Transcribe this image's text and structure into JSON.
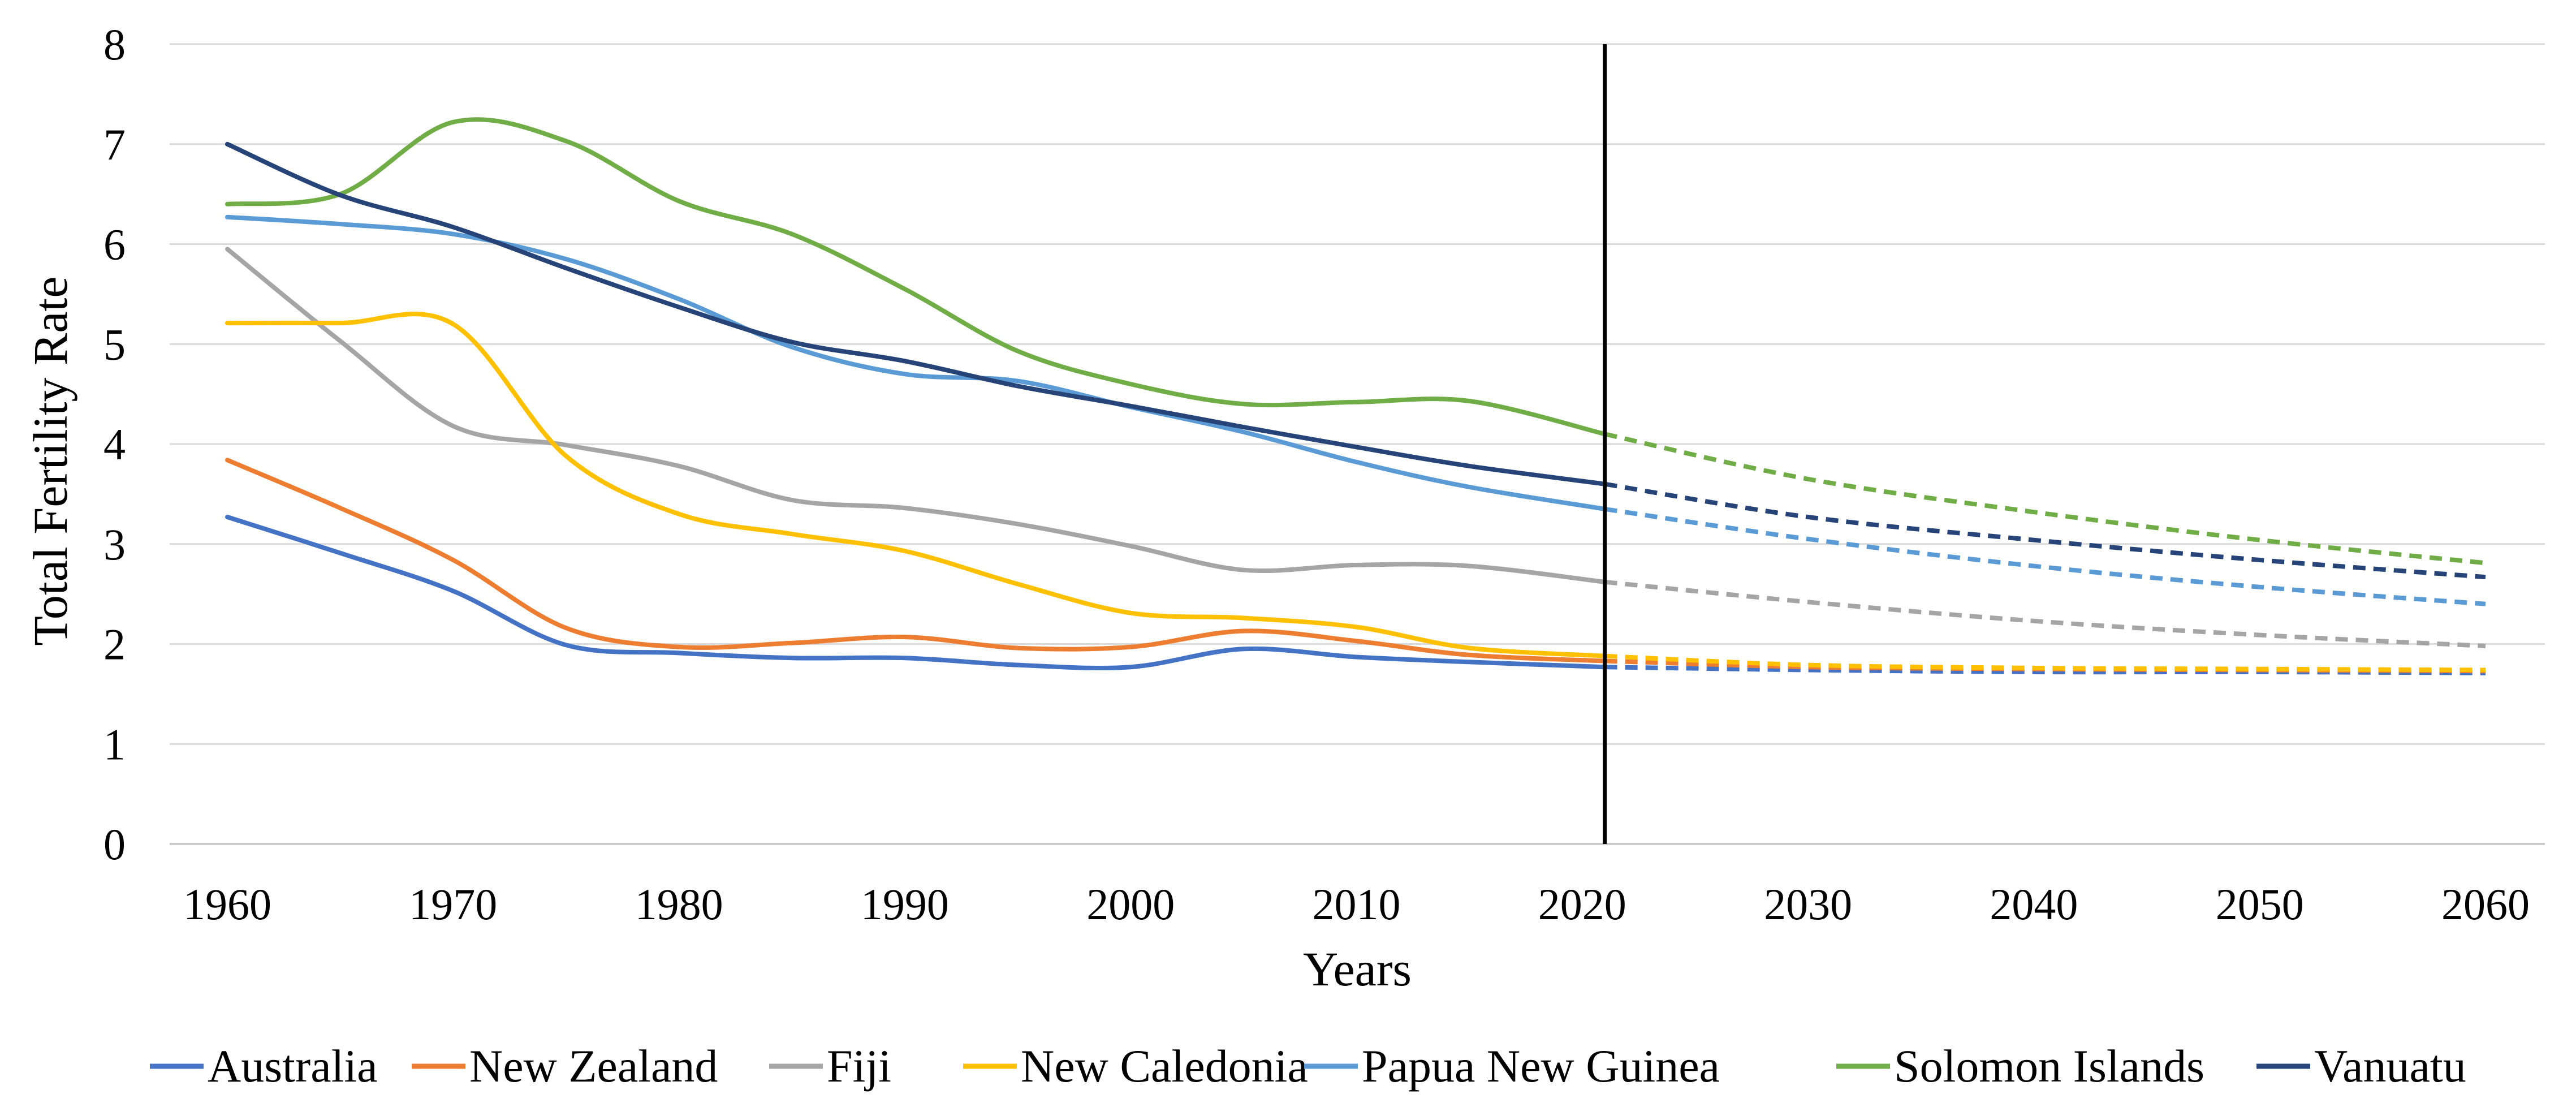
{
  "chart_data": {
    "type": "line",
    "title": "",
    "xlabel": "Years",
    "ylabel": "Total Fertility Rate",
    "xlim": [
      1960,
      2060
    ],
    "ylim": [
      0,
      8
    ],
    "x_ticks": [
      "1960",
      "1970",
      "1980",
      "1990",
      "2000",
      "2010",
      "2020",
      "2030",
      "2040",
      "2050",
      "2060"
    ],
    "y_ticks": [
      "0",
      "1",
      "2",
      "3",
      "4",
      "5",
      "6",
      "7",
      "8"
    ],
    "grid": "horizontal",
    "legend_position": "bottom",
    "vertical_marker_x": 2021,
    "projection_start": 2021,
    "projection_style": "dashed",
    "series": [
      {
        "name": "Australia",
        "color": "#4472C4",
        "x": [
          1960,
          1965,
          1970,
          1975,
          1980,
          1985,
          1990,
          1995,
          2000,
          2005,
          2010,
          2015,
          2021
        ],
        "values": [
          3.27,
          2.91,
          2.53,
          1.99,
          1.91,
          1.86,
          1.86,
          1.79,
          1.77,
          1.95,
          1.87,
          1.82,
          1.77
        ],
        "projection": {
          "x": [
            2021,
            2030,
            2040,
            2050,
            2060
          ],
          "values": [
            1.77,
            1.74,
            1.72,
            1.72,
            1.71
          ]
        }
      },
      {
        "name": "New Zealand",
        "color": "#ED7D31",
        "x": [
          1960,
          1965,
          1970,
          1975,
          1980,
          1985,
          1990,
          1995,
          2000,
          2005,
          2010,
          2015,
          2021
        ],
        "values": [
          3.84,
          3.36,
          2.84,
          2.16,
          1.97,
          2.01,
          2.07,
          1.96,
          1.97,
          2.13,
          2.03,
          1.89,
          1.83
        ],
        "projection": {
          "x": [
            2021,
            2030,
            2040,
            2050,
            2060
          ],
          "values": [
            1.83,
            1.77,
            1.75,
            1.74,
            1.73
          ]
        }
      },
      {
        "name": "Fiji",
        "color": "#A5A5A5",
        "x": [
          1960,
          1965,
          1970,
          1975,
          1980,
          1985,
          1990,
          1995,
          2000,
          2005,
          2010,
          2015,
          2021
        ],
        "values": [
          5.95,
          5.03,
          4.18,
          3.99,
          3.78,
          3.44,
          3.36,
          3.2,
          2.98,
          2.74,
          2.79,
          2.78,
          2.62
        ],
        "projection": {
          "x": [
            2021,
            2030,
            2040,
            2050,
            2060
          ],
          "values": [
            2.62,
            2.42,
            2.23,
            2.09,
            1.98
          ]
        }
      },
      {
        "name": "New Caledonia",
        "color": "#FFC000",
        "x": [
          1960,
          1965,
          1970,
          1975,
          1980,
          1985,
          1990,
          1995,
          2000,
          2005,
          2010,
          2015,
          2021
        ],
        "values": [
          5.21,
          5.21,
          5.2,
          3.88,
          3.3,
          3.1,
          2.93,
          2.6,
          2.31,
          2.26,
          2.17,
          1.96,
          1.88
        ],
        "projection": {
          "x": [
            2021,
            2030,
            2040,
            2050,
            2060
          ],
          "values": [
            1.88,
            1.79,
            1.76,
            1.75,
            1.74
          ]
        }
      },
      {
        "name": "Papua New Guinea",
        "color": "#5B9BD5",
        "x": [
          1960,
          1965,
          1970,
          1975,
          1980,
          1985,
          1990,
          1995,
          2000,
          2005,
          2010,
          2015,
          2021
        ],
        "values": [
          6.27,
          6.2,
          6.1,
          5.85,
          5.45,
          4.97,
          4.7,
          4.63,
          4.37,
          4.12,
          3.82,
          3.57,
          3.35
        ],
        "projection": {
          "x": [
            2021,
            2030,
            2040,
            2050,
            2060
          ],
          "values": [
            3.35,
            3.05,
            2.78,
            2.57,
            2.4
          ]
        }
      },
      {
        "name": "Solomon Islands",
        "color": "#70AD47",
        "x": [
          1960,
          1965,
          1970,
          1975,
          1980,
          1985,
          1990,
          1995,
          2000,
          2005,
          2010,
          2015,
          2021
        ],
        "values": [
          6.4,
          6.5,
          7.22,
          7.03,
          6.43,
          6.1,
          5.55,
          4.93,
          4.6,
          4.4,
          4.42,
          4.43,
          4.1
        ],
        "projection": {
          "x": [
            2021,
            2030,
            2040,
            2050,
            2060
          ],
          "values": [
            4.1,
            3.65,
            3.32,
            3.04,
            2.81
          ]
        }
      },
      {
        "name": "Vanuatu",
        "color": "#264478",
        "x": [
          1960,
          1965,
          1970,
          1975,
          1980,
          1985,
          1990,
          1995,
          2000,
          2005,
          2010,
          2015,
          2021
        ],
        "values": [
          7.0,
          6.49,
          6.17,
          5.76,
          5.37,
          5.02,
          4.83,
          4.58,
          4.38,
          4.17,
          3.97,
          3.78,
          3.6
        ],
        "projection": {
          "x": [
            2021,
            2030,
            2040,
            2050,
            2060
          ],
          "values": [
            3.6,
            3.27,
            3.04,
            2.84,
            2.67
          ]
        }
      }
    ]
  }
}
